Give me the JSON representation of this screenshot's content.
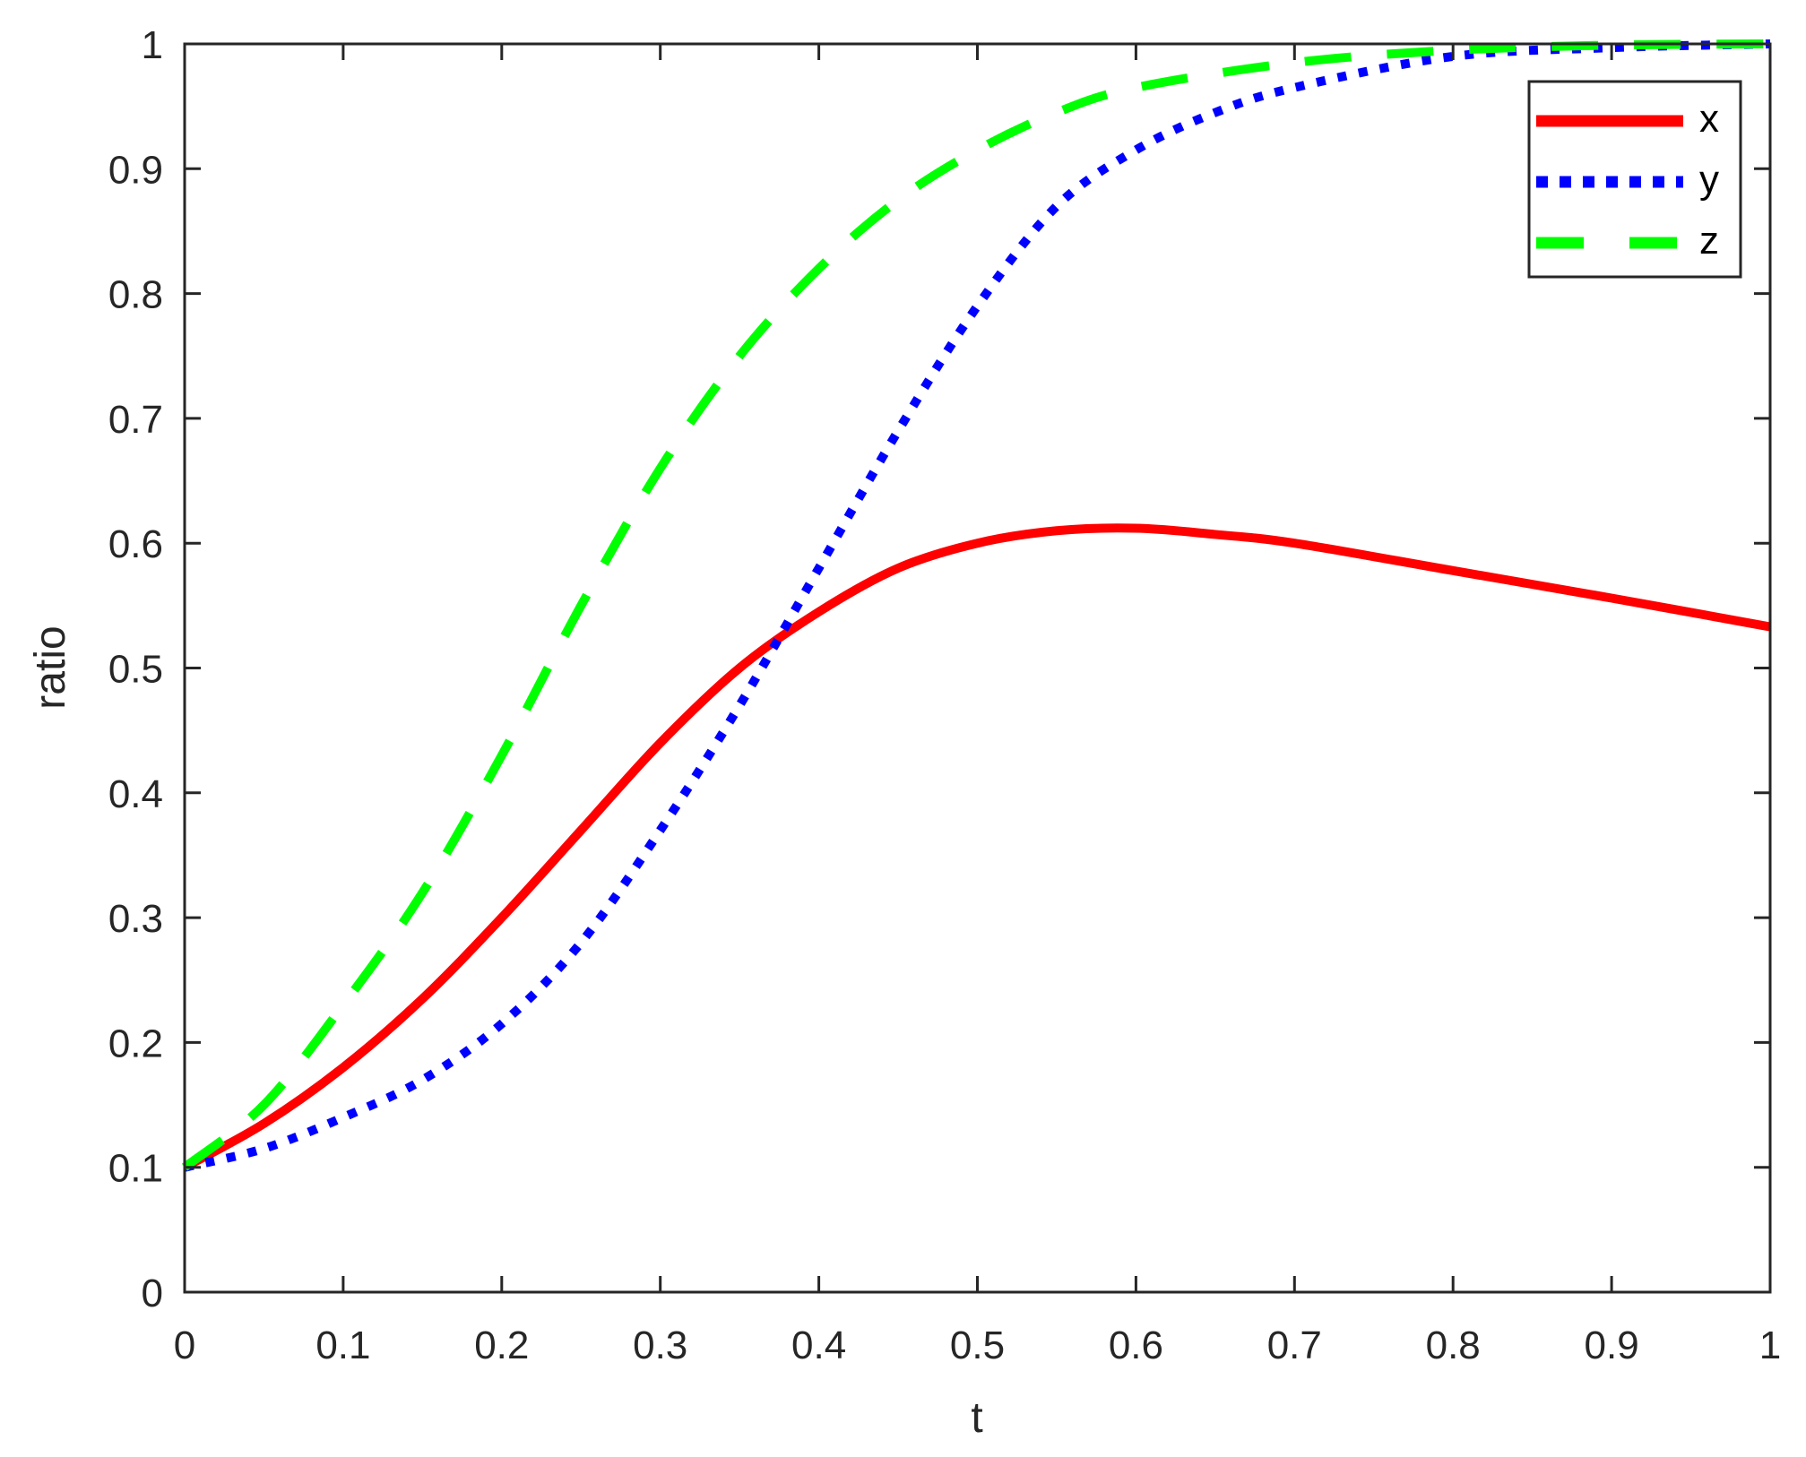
{
  "chart_data": {
    "type": "line",
    "title": "",
    "xlabel": "t",
    "ylabel": "ratio",
    "xlim": [
      0,
      1
    ],
    "ylim": [
      0,
      1
    ],
    "xticks": [
      "0",
      "0.1",
      "0.2",
      "0.3",
      "0.4",
      "0.5",
      "0.6",
      "0.7",
      "0.8",
      "0.9",
      "1"
    ],
    "yticks": [
      "0",
      "0.1",
      "0.2",
      "0.3",
      "0.4",
      "0.5",
      "0.6",
      "0.7",
      "0.8",
      "0.9",
      "1"
    ],
    "grid": false,
    "legend_position": "upper right",
    "series": [
      {
        "name": "x",
        "color": "#ff0000",
        "style": "solid",
        "x": [
          0,
          0.05,
          0.1,
          0.15,
          0.2,
          0.25,
          0.3,
          0.35,
          0.4,
          0.45,
          0.5,
          0.55,
          0.6,
          0.65,
          0.7,
          0.8,
          0.9,
          1.0
        ],
        "values": [
          0.1,
          0.135,
          0.18,
          0.235,
          0.3,
          0.37,
          0.44,
          0.5,
          0.545,
          0.58,
          0.6,
          0.61,
          0.612,
          0.607,
          0.6,
          0.578,
          0.556,
          0.533
        ]
      },
      {
        "name": "y",
        "color": "#0000ff",
        "style": "dotted",
        "x": [
          0,
          0.05,
          0.1,
          0.15,
          0.2,
          0.25,
          0.3,
          0.35,
          0.4,
          0.45,
          0.5,
          0.55,
          0.6,
          0.65,
          0.7,
          0.8,
          0.9,
          1.0
        ],
        "values": [
          0.1,
          0.115,
          0.14,
          0.17,
          0.215,
          0.28,
          0.37,
          0.47,
          0.58,
          0.69,
          0.79,
          0.87,
          0.915,
          0.945,
          0.965,
          0.99,
          0.997,
          1.0
        ]
      },
      {
        "name": "z",
        "color": "#00ff00",
        "style": "dashed",
        "x": [
          0,
          0.05,
          0.1,
          0.15,
          0.2,
          0.25,
          0.3,
          0.35,
          0.4,
          0.45,
          0.5,
          0.55,
          0.6,
          0.7,
          0.8,
          0.9,
          1.0
        ],
        "values": [
          0.1,
          0.15,
          0.23,
          0.32,
          0.43,
          0.55,
          0.66,
          0.75,
          0.82,
          0.875,
          0.915,
          0.945,
          0.965,
          0.985,
          0.995,
          0.999,
          1.0
        ]
      }
    ]
  }
}
